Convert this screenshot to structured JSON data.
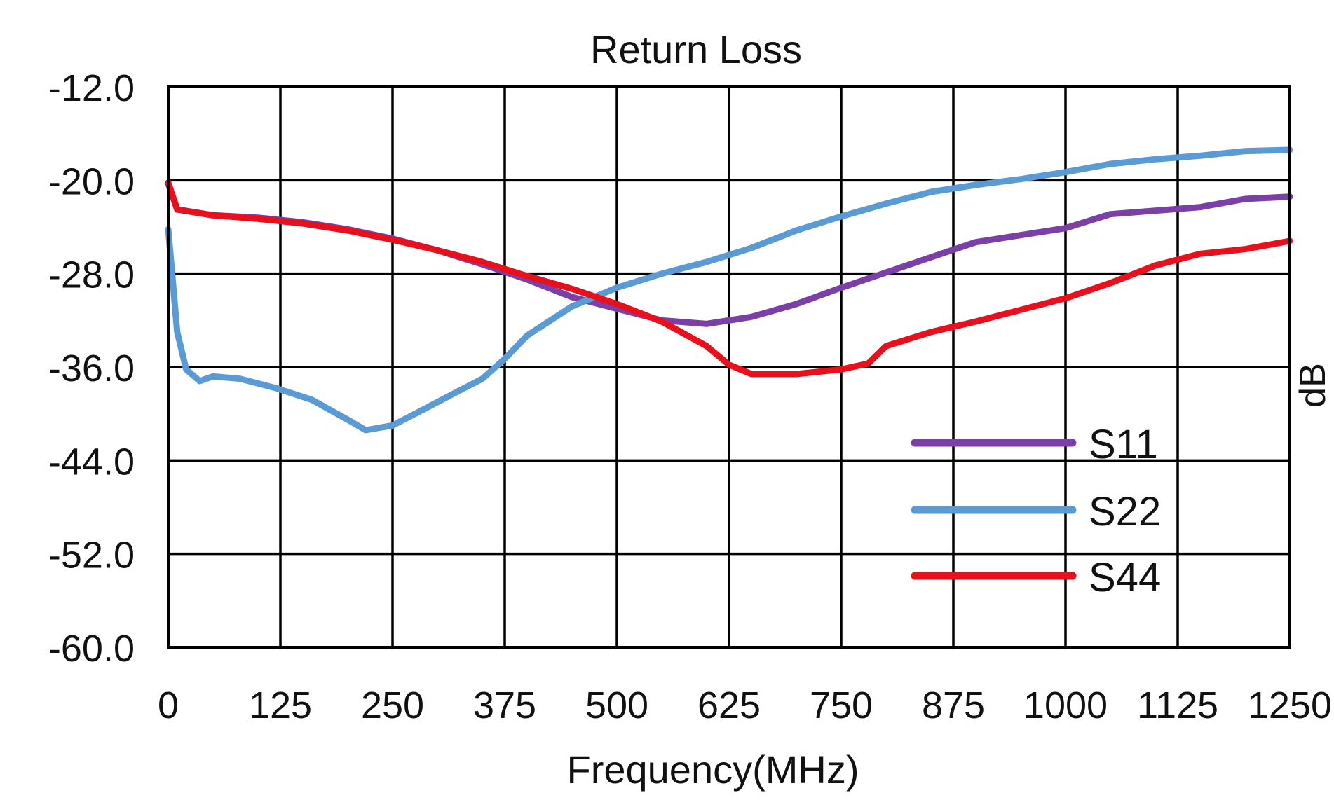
{
  "chart_data": {
    "type": "line",
    "title": "Return Loss",
    "xlabel": "Frequency(MHz)",
    "ylabel": "dB",
    "xlim": [
      0,
      1250
    ],
    "ylim": [
      -60,
      -12
    ],
    "x_ticks": [
      0,
      125,
      250,
      375,
      500,
      625,
      750,
      875,
      1000,
      1125,
      1250
    ],
    "x_tick_labels": [
      "0",
      "125",
      "250",
      "375",
      "500",
      "625",
      "750",
      "875",
      "1000",
      "1125",
      "1250"
    ],
    "y_ticks": [
      -12,
      -20,
      -28,
      -36,
      -44,
      -52,
      -60
    ],
    "y_tick_labels": [
      "-12.0",
      "-20.0",
      "-28.0",
      "-36.0",
      "-44.0",
      "-52.0",
      "-60.0"
    ],
    "grid": true,
    "legend_position": "bottom-right",
    "series": [
      {
        "name": "S11",
        "color": "#7b3fa8",
        "points": [
          [
            0,
            -20.3
          ],
          [
            10,
            -22.5
          ],
          [
            50,
            -23
          ],
          [
            100,
            -23.2
          ],
          [
            150,
            -23.6
          ],
          [
            200,
            -24.2
          ],
          [
            250,
            -25
          ],
          [
            300,
            -26
          ],
          [
            350,
            -27.2
          ],
          [
            400,
            -28.5
          ],
          [
            450,
            -30
          ],
          [
            500,
            -31
          ],
          [
            550,
            -32
          ],
          [
            600,
            -32.3
          ],
          [
            650,
            -31.7
          ],
          [
            700,
            -30.6
          ],
          [
            750,
            -29.2
          ],
          [
            800,
            -27.9
          ],
          [
            850,
            -26.6
          ],
          [
            900,
            -25.3
          ],
          [
            950,
            -24.7
          ],
          [
            1000,
            -24.1
          ],
          [
            1050,
            -22.9
          ],
          [
            1100,
            -22.6
          ],
          [
            1150,
            -22.3
          ],
          [
            1200,
            -21.6
          ],
          [
            1250,
            -21.4
          ]
        ]
      },
      {
        "name": "S22",
        "color": "#5b9bd5",
        "points": [
          [
            0,
            -24.2
          ],
          [
            10,
            -33
          ],
          [
            20,
            -36.2
          ],
          [
            35,
            -37.2
          ],
          [
            50,
            -36.8
          ],
          [
            80,
            -37
          ],
          [
            120,
            -37.8
          ],
          [
            160,
            -38.8
          ],
          [
            200,
            -40.5
          ],
          [
            220,
            -41.4
          ],
          [
            250,
            -41
          ],
          [
            275,
            -40
          ],
          [
            300,
            -39
          ],
          [
            325,
            -38
          ],
          [
            350,
            -37
          ],
          [
            375,
            -35.3
          ],
          [
            400,
            -33.3
          ],
          [
            450,
            -30.8
          ],
          [
            500,
            -29.2
          ],
          [
            550,
            -28
          ],
          [
            600,
            -27
          ],
          [
            650,
            -25.8
          ],
          [
            700,
            -24.3
          ],
          [
            750,
            -23.1
          ],
          [
            800,
            -22
          ],
          [
            850,
            -21
          ],
          [
            900,
            -20.4
          ],
          [
            950,
            -19.9
          ],
          [
            1000,
            -19.3
          ],
          [
            1050,
            -18.6
          ],
          [
            1100,
            -18.2
          ],
          [
            1150,
            -17.9
          ],
          [
            1200,
            -17.5
          ],
          [
            1250,
            -17.4
          ]
        ]
      },
      {
        "name": "S44",
        "color": "#e8101c",
        "points": [
          [
            0,
            -20.2
          ],
          [
            10,
            -22.5
          ],
          [
            50,
            -23
          ],
          [
            100,
            -23.3
          ],
          [
            150,
            -23.7
          ],
          [
            200,
            -24.3
          ],
          [
            250,
            -25.1
          ],
          [
            300,
            -26
          ],
          [
            350,
            -27
          ],
          [
            400,
            -28.2
          ],
          [
            450,
            -29.3
          ],
          [
            500,
            -30.6
          ],
          [
            550,
            -32.1
          ],
          [
            600,
            -34.2
          ],
          [
            625,
            -35.8
          ],
          [
            650,
            -36.6
          ],
          [
            700,
            -36.6
          ],
          [
            750,
            -36.2
          ],
          [
            780,
            -35.7
          ],
          [
            800,
            -34.2
          ],
          [
            850,
            -33
          ],
          [
            900,
            -32.1
          ],
          [
            950,
            -31.1
          ],
          [
            1000,
            -30.1
          ],
          [
            1050,
            -28.8
          ],
          [
            1100,
            -27.3
          ],
          [
            1150,
            -26.3
          ],
          [
            1200,
            -25.9
          ],
          [
            1250,
            -25.2
          ]
        ]
      }
    ]
  }
}
